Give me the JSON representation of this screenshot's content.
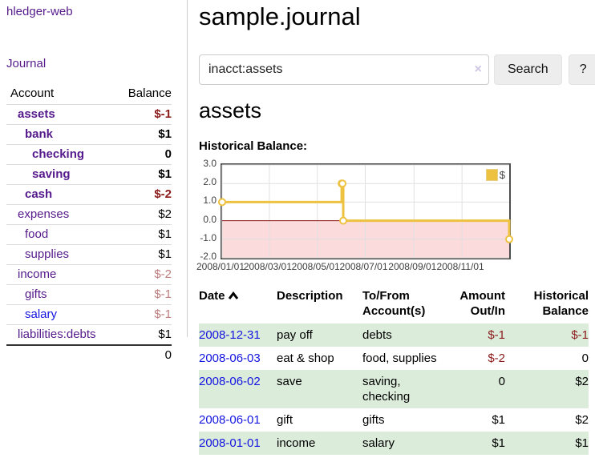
{
  "app": {
    "title": "hledger-web",
    "nav_journal": "Journal"
  },
  "colors": {
    "link_visited": "#551a8b",
    "link_unvisited": "#1414e0",
    "negative": "#8b1a1a",
    "negative_soft": "#bc7d7d",
    "row_shade": "#dcecdb",
    "series": "#edc240"
  },
  "sidebar": {
    "header": {
      "account": "Account",
      "balance": "Balance"
    },
    "rows": [
      {
        "name": "assets",
        "balance": "$-1",
        "level": 1,
        "bold": true,
        "balance_class": "neg",
        "link_class": ""
      },
      {
        "name": "bank",
        "balance": "$1",
        "level": 2,
        "bold": true,
        "balance_class": "",
        "link_class": ""
      },
      {
        "name": "checking",
        "balance": "0",
        "level": 3,
        "bold": true,
        "balance_class": "",
        "link_class": ""
      },
      {
        "name": "saving",
        "balance": "$1",
        "level": 3,
        "bold": true,
        "balance_class": "",
        "link_class": ""
      },
      {
        "name": "cash",
        "balance": "$-2",
        "level": 2,
        "bold": true,
        "balance_class": "neg",
        "link_class": ""
      },
      {
        "name": "expenses",
        "balance": "$2",
        "level": 1,
        "bold": false,
        "balance_class": "",
        "link_class": ""
      },
      {
        "name": "food",
        "balance": "$1",
        "level": 2,
        "bold": false,
        "balance_class": "",
        "link_class": ""
      },
      {
        "name": "supplies",
        "balance": "$1",
        "level": 2,
        "bold": false,
        "balance_class": "",
        "link_class": ""
      },
      {
        "name": "income",
        "balance": "$-2",
        "level": 1,
        "bold": false,
        "balance_class": "negsoft",
        "link_class": ""
      },
      {
        "name": "gifts",
        "balance": "$-1",
        "level": 2,
        "bold": false,
        "balance_class": "negsoft",
        "link_class": ""
      },
      {
        "name": "salary",
        "balance": "$-1",
        "level": 2,
        "bold": false,
        "balance_class": "negsoft",
        "link_class": "unvisited"
      },
      {
        "name": "liabilities:debts",
        "balance": "$1",
        "level": 1,
        "bold": false,
        "balance_class": "",
        "link_class": ""
      }
    ],
    "total": "0"
  },
  "main": {
    "title": "sample.journal",
    "search": {
      "value": "inacct:assets",
      "clear_icon": "×",
      "search_label": "Search",
      "help_label": "?"
    },
    "account_heading": "assets",
    "chart_label": "Historical Balance:"
  },
  "chart_data": {
    "type": "line",
    "style": "step",
    "series": [
      {
        "name": "$",
        "color": "#edc240",
        "points": [
          {
            "date": "2008-01-01",
            "value": 1
          },
          {
            "date": "2008-06-01",
            "value": 2
          },
          {
            "date": "2008-06-02",
            "value": 2
          },
          {
            "date": "2008-06-03",
            "value": 0
          },
          {
            "date": "2008-12-31",
            "value": -1
          }
        ]
      }
    ],
    "xrange": [
      "2008-01-01",
      "2008-12-31"
    ],
    "ylim": [
      -2,
      3
    ],
    "yticks": [
      {
        "value": 3,
        "label": "3.0"
      },
      {
        "value": 2,
        "label": "2.0"
      },
      {
        "value": 1,
        "label": "1.0"
      },
      {
        "value": 0,
        "label": "0.0"
      },
      {
        "value": -1,
        "label": "-1.0"
      },
      {
        "value": -2,
        "label": "-2.0"
      }
    ],
    "xticks": [
      {
        "date": "2008-01-01",
        "label": "2008/01/01"
      },
      {
        "date": "2008-03-01",
        "label": "2008/03/01"
      },
      {
        "date": "2008-05-01",
        "label": "2008/05/01"
      },
      {
        "date": "2008-07-01",
        "label": "2008/07/01"
      },
      {
        "date": "2008-09-01",
        "label": "2008/09/01"
      },
      {
        "date": "2008-11-01",
        "label": "2008/11/01"
      }
    ],
    "legend": {
      "label": "$",
      "position": "top-right"
    },
    "grid": true,
    "zero_line_color": "#8b1414",
    "below_zero_fill": "#fbdbdb"
  },
  "register": {
    "headers": {
      "date": "Date",
      "description": "Description",
      "accounts": "To/From Account(s)",
      "amount": "Amount Out/In",
      "balance": "Historical Balance"
    },
    "rows": [
      {
        "date": "2008-12-31",
        "description": "pay off",
        "accounts": "debts",
        "amount": "$-1",
        "balance": "$-1",
        "amount_class": "neg",
        "balance_class": "neg",
        "shade": true
      },
      {
        "date": "2008-06-03",
        "description": "eat & shop",
        "accounts": "food, supplies",
        "amount": "$-2",
        "balance": "0",
        "amount_class": "neg",
        "balance_class": "",
        "shade": false
      },
      {
        "date": "2008-06-02",
        "description": "save",
        "accounts": "saving, checking",
        "amount": "0",
        "balance": "$2",
        "amount_class": "",
        "balance_class": "",
        "shade": true
      },
      {
        "date": "2008-06-01",
        "description": "gift",
        "accounts": "gifts",
        "amount": "$1",
        "balance": "$2",
        "amount_class": "",
        "balance_class": "",
        "shade": false
      },
      {
        "date": "2008-01-01",
        "description": "income",
        "accounts": "salary",
        "amount": "$1",
        "balance": "$1",
        "amount_class": "",
        "balance_class": "",
        "shade": true
      }
    ]
  }
}
